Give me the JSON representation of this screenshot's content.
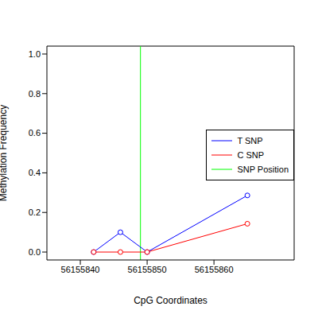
{
  "chart_data": {
    "type": "line",
    "x_label": "CpG Coordinates",
    "y_label": "Methylation Frequency",
    "xlim": [
      56155835,
      56155872
    ],
    "xticks": [
      56155840,
      56155850,
      56155860
    ],
    "ylim": [
      -0.04,
      1.04
    ],
    "yticks": [
      {
        "value": 0,
        "label": "0.0"
      },
      {
        "value": 0.2,
        "label": "0.2"
      },
      {
        "value": 0.4,
        "label": "0.4"
      },
      {
        "value": 0.6,
        "label": "0.6"
      },
      {
        "value": 0.8,
        "label": "0.8"
      },
      {
        "value": 1.0,
        "label": "1.0"
      }
    ],
    "legend": "right",
    "marker": "circle_open",
    "series": [
      {
        "name": "T SNP",
        "color": "#0000ff",
        "x": [
          56155842,
          56155846,
          56155850,
          56155865
        ],
        "values": [
          0,
          0.1,
          0,
          0.286
        ]
      },
      {
        "name": "C SNP",
        "color": "#ff0000",
        "x": [
          56155842,
          56155846,
          56155850,
          56155865
        ],
        "values": [
          0,
          0,
          0,
          0.143
        ]
      }
    ],
    "snp": {
      "name": "SNP Position",
      "color": "#00ff00",
      "x": 56155849
    }
  }
}
